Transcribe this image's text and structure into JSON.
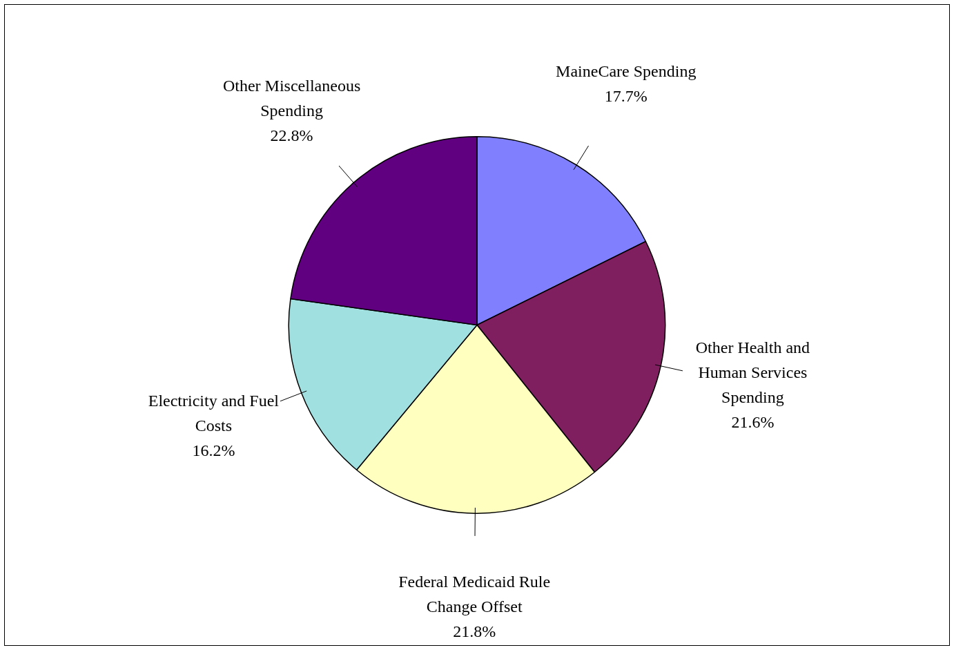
{
  "chart_data": {
    "type": "pie",
    "categories": [
      "MaineCare Spending",
      "Other Health and Human Services Spending",
      "Federal Medicaid Rule Change Offset",
      "Electricity and Fuel Costs",
      "Other Miscellaneous Spending"
    ],
    "values": [
      17.7,
      21.6,
      21.8,
      16.2,
      22.8
    ],
    "value_labels": [
      "17.7%",
      "21.6%",
      "21.8%",
      "16.2%",
      "22.8%"
    ],
    "colors": [
      "#8080ff",
      "#7f1f5f",
      "#ffffc0",
      "#a0e0e0",
      "#600080"
    ],
    "legend": false
  }
}
